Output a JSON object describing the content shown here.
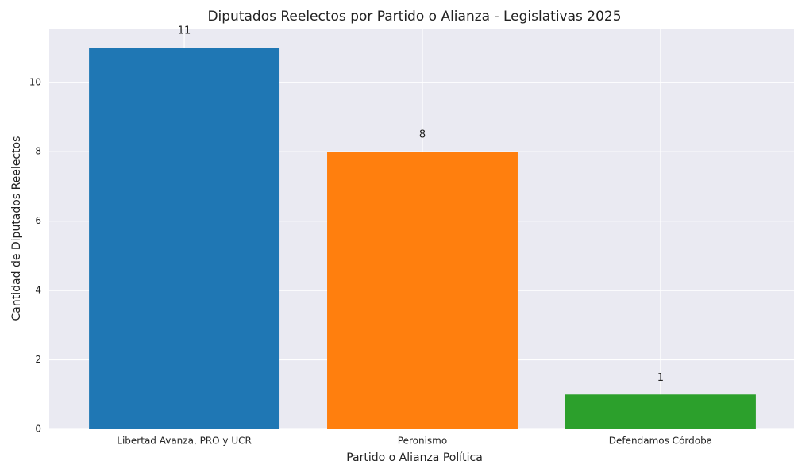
{
  "chart_data": {
    "type": "bar",
    "title": "Diputados Reelectos por Partido o Alianza - Legislativas 2025",
    "x_label": "Partido o Alianza Política",
    "y_label": "Cantidad de Diputados Reelectos",
    "categories": [
      "Libertad Avanza, PRO y UCR",
      "Peronismo",
      "Defendamos Córdoba"
    ],
    "values": [
      11,
      8,
      1
    ],
    "colors": [
      "#1f77b4",
      "#ff7f0e",
      "#2ca02c"
    ],
    "ylim": [
      0,
      11.55
    ],
    "yticks": [
      0,
      2,
      4,
      6,
      8,
      10
    ],
    "grid": true
  }
}
